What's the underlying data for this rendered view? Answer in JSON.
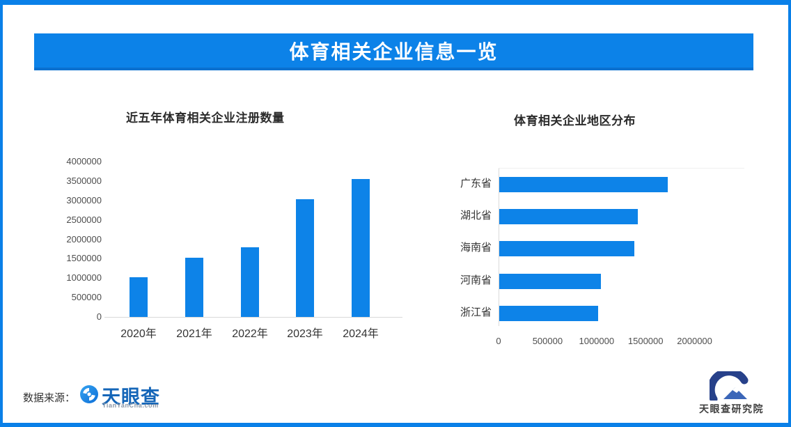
{
  "banner": {
    "title": "体育相关企业信息一览"
  },
  "colors": {
    "accent_blue": "#0c82e8",
    "bar_blue": "#0d83e8",
    "frame_blue": "#0a80e8",
    "axis_gray": "#d9d9d9"
  },
  "source": {
    "label": "数据来源：",
    "logo_icon": "tianyancha-eye-icon",
    "logo_name": "天眼查",
    "logo_sub": "TianYanCha.com"
  },
  "footer_logo": {
    "icon": "tianyancha-institute-icon",
    "name": "天眼查研究院"
  },
  "chart_data": [
    {
      "type": "bar",
      "title": "近五年体育相关企业注册数量",
      "categories": [
        "2020年",
        "2021年",
        "2022年",
        "2023年",
        "2024年"
      ],
      "values": [
        1020000,
        1520000,
        1790000,
        3030000,
        3550000
      ],
      "xlabel": "",
      "ylabel": "",
      "ylim": [
        0,
        4000000
      ],
      "yticks": [
        0,
        500000,
        1000000,
        1500000,
        2000000,
        2500000,
        3000000,
        3500000,
        4000000
      ],
      "grid": false,
      "legend": "none",
      "bar_color": "#0d83e8"
    },
    {
      "type": "bar",
      "orientation": "horizontal",
      "title": "体育相关企业地区分布",
      "categories": [
        "广东省",
        "湖北省",
        "海南省",
        "河南省",
        "浙江省"
      ],
      "values": [
        1720000,
        1410000,
        1380000,
        1040000,
        1010000
      ],
      "xlabel": "",
      "ylabel": "",
      "xlim": [
        0,
        2500000
      ],
      "xticks": [
        0,
        500000,
        1000000,
        1500000,
        2000000
      ],
      "grid": false,
      "legend": "none",
      "bar_color": "#0d83e8"
    }
  ]
}
